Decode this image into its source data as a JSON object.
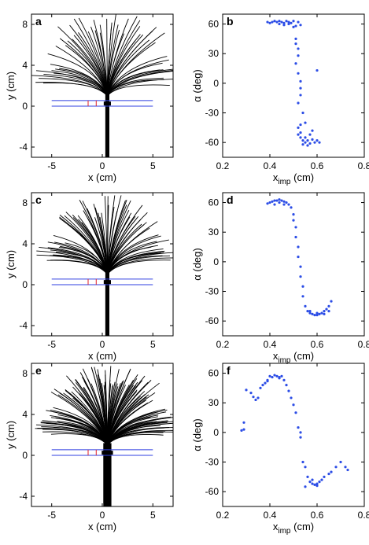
{
  "chart_data": [
    {
      "panel": "a",
      "type": "line",
      "xlabel": "x (cm)",
      "ylabel": "y (cm)",
      "xlim": [
        -7,
        7
      ],
      "ylim": [
        -5,
        9
      ],
      "xticks": [
        "-5",
        "0",
        "5"
      ],
      "yticks": [
        "-4",
        "0",
        "4",
        "8"
      ],
      "grid": false,
      "fan": {
        "origin": [
          0.5,
          1.0
        ],
        "max_len": 8.0,
        "count": 60,
        "max_angle_deg": 75
      },
      "stem": {
        "x": [
          0.3,
          0.7
        ],
        "y": [
          -5,
          1.2
        ]
      },
      "reference_lines": [
        {
          "y": 0.55,
          "x_range": [
            -5,
            5
          ],
          "color": "#2f3fe0"
        },
        {
          "y": 0.0,
          "x_range": [
            -5,
            5
          ],
          "color": "#2f3fe0"
        }
      ],
      "markers": [
        {
          "x": -1.4,
          "y_range": [
            0.0,
            0.55
          ],
          "color": "#e0202a"
        },
        {
          "x": -0.6,
          "y_range": [
            0.0,
            0.55
          ],
          "color": "#e0202a"
        }
      ]
    },
    {
      "panel": "b",
      "type": "scatter",
      "xlabel": "x",
      "xlabel_sub": "imp",
      "xlabel_unit": " (cm)",
      "ylabel": "α (deg)",
      "xlim": [
        0.2,
        0.8
      ],
      "ylim": [
        -75,
        70
      ],
      "xticks": [
        "0.2",
        "0.4",
        "0.6",
        "0.8"
      ],
      "yticks": [
        "-60",
        "-30",
        "0",
        "30",
        "60"
      ],
      "grid": false,
      "marker_color": "#2c4de6",
      "points": [
        [
          0.39,
          62
        ],
        [
          0.4,
          61
        ],
        [
          0.41,
          62
        ],
        [
          0.42,
          63
        ],
        [
          0.43,
          62
        ],
        [
          0.44,
          63
        ],
        [
          0.45,
          62
        ],
        [
          0.46,
          61
        ],
        [
          0.47,
          63
        ],
        [
          0.48,
          62
        ],
        [
          0.49,
          61
        ],
        [
          0.5,
          57
        ],
        [
          0.51,
          58
        ],
        [
          0.52,
          62
        ],
        [
          0.53,
          59
        ],
        [
          0.44,
          60
        ],
        [
          0.46,
          59
        ],
        [
          0.48,
          60
        ],
        [
          0.5,
          63
        ],
        [
          0.51,
          45
        ],
        [
          0.51,
          40
        ],
        [
          0.52,
          35
        ],
        [
          0.52,
          28
        ],
        [
          0.51,
          20
        ],
        [
          0.52,
          10
        ],
        [
          0.53,
          2
        ],
        [
          0.53,
          -5
        ],
        [
          0.53,
          -12
        ],
        [
          0.52,
          -20
        ],
        [
          0.54,
          -30
        ],
        [
          0.53,
          -42
        ],
        [
          0.52,
          -45
        ],
        [
          0.52,
          -52
        ],
        [
          0.53,
          -55
        ],
        [
          0.54,
          -58
        ],
        [
          0.55,
          -60
        ],
        [
          0.56,
          -58
        ],
        [
          0.57,
          -61
        ],
        [
          0.58,
          -57
        ],
        [
          0.59,
          -60
        ],
        [
          0.6,
          -58
        ],
        [
          0.61,
          -60
        ],
        [
          0.55,
          -55
        ],
        [
          0.57,
          -52
        ],
        [
          0.54,
          -62
        ],
        [
          0.56,
          -63
        ],
        [
          0.6,
          13
        ],
        [
          0.55,
          -40
        ],
        [
          0.58,
          -48
        ],
        [
          0.53,
          -50
        ]
      ]
    },
    {
      "panel": "c",
      "type": "line",
      "xlabel": "x (cm)",
      "ylabel": "y (cm)",
      "xlim": [
        -7,
        7
      ],
      "ylim": [
        -5,
        9
      ],
      "xticks": [
        "-5",
        "0",
        "5"
      ],
      "yticks": [
        "-4",
        "0",
        "4",
        "8"
      ],
      "grid": false,
      "fan": {
        "origin": [
          0.5,
          1.0
        ],
        "max_len": 7.5,
        "count": 80,
        "max_angle_deg": 72
      },
      "stem": {
        "x": [
          0.3,
          0.7
        ],
        "y": [
          -5,
          1.2
        ]
      },
      "reference_lines": [
        {
          "y": 0.55,
          "x_range": [
            -5,
            5
          ],
          "color": "#2f3fe0"
        },
        {
          "y": 0.0,
          "x_range": [
            -5,
            5
          ],
          "color": "#2f3fe0"
        }
      ],
      "markers": [
        {
          "x": -1.4,
          "y_range": [
            0.0,
            0.55
          ],
          "color": "#e0202a"
        },
        {
          "x": -0.6,
          "y_range": [
            0.0,
            0.55
          ],
          "color": "#e0202a"
        }
      ]
    },
    {
      "panel": "d",
      "type": "scatter",
      "xlabel": "x",
      "xlabel_sub": "imp",
      "xlabel_unit": " (cm)",
      "ylabel": "α (deg)",
      "xlim": [
        0.2,
        0.8
      ],
      "ylim": [
        -75,
        70
      ],
      "xticks": [
        "0.2",
        "0.4",
        "0.6",
        "0.8"
      ],
      "yticks": [
        "-60",
        "-30",
        "0",
        "30",
        "60"
      ],
      "grid": false,
      "marker_color": "#2c4de6",
      "points": [
        [
          0.39,
          59
        ],
        [
          0.4,
          60
        ],
        [
          0.41,
          61
        ],
        [
          0.42,
          62
        ],
        [
          0.43,
          62
        ],
        [
          0.44,
          63
        ],
        [
          0.45,
          62
        ],
        [
          0.46,
          61
        ],
        [
          0.47,
          60
        ],
        [
          0.48,
          58
        ],
        [
          0.49,
          55
        ],
        [
          0.5,
          48
        ],
        [
          0.5,
          42
        ],
        [
          0.51,
          35
        ],
        [
          0.51,
          25
        ],
        [
          0.52,
          15
        ],
        [
          0.52,
          5
        ],
        [
          0.53,
          -5
        ],
        [
          0.53,
          -15
        ],
        [
          0.54,
          -25
        ],
        [
          0.54,
          -35
        ],
        [
          0.55,
          -45
        ],
        [
          0.56,
          -50
        ],
        [
          0.57,
          -52
        ],
        [
          0.58,
          -53
        ],
        [
          0.59,
          -54
        ],
        [
          0.6,
          -54
        ],
        [
          0.61,
          -53
        ],
        [
          0.62,
          -52
        ],
        [
          0.63,
          -50
        ],
        [
          0.64,
          -48
        ],
        [
          0.65,
          -45
        ],
        [
          0.66,
          -40
        ],
        [
          0.42,
          58
        ],
        [
          0.44,
          60
        ],
        [
          0.46,
          58
        ],
        [
          0.57,
          -50
        ],
        [
          0.6,
          -52
        ],
        [
          0.63,
          -53
        ],
        [
          0.65,
          -50
        ]
      ]
    },
    {
      "panel": "e",
      "type": "line",
      "xlabel": "x (cm)",
      "ylabel": "y (cm)",
      "xlim": [
        -7,
        7
      ],
      "ylim": [
        -5,
        9
      ],
      "xticks": [
        "-5",
        "0",
        "5"
      ],
      "yticks": [
        "-4",
        "0",
        "4",
        "8"
      ],
      "grid": false,
      "fan": {
        "origin": [
          0.5,
          1.0
        ],
        "max_len": 7.6,
        "count": 130,
        "max_angle_deg": 75
      },
      "stem": {
        "x": [
          0.1,
          0.9
        ],
        "y": [
          -5,
          1.2
        ]
      },
      "reference_lines": [
        {
          "y": 0.55,
          "x_range": [
            -5,
            5
          ],
          "color": "#2f3fe0"
        },
        {
          "y": 0.0,
          "x_range": [
            -5,
            5
          ],
          "color": "#2f3fe0"
        }
      ],
      "markers": [
        {
          "x": -1.4,
          "y_range": [
            0.0,
            0.55
          ],
          "color": "#e0202a"
        },
        {
          "x": -0.6,
          "y_range": [
            0.0,
            0.55
          ],
          "color": "#e0202a"
        }
      ]
    },
    {
      "panel": "f",
      "type": "scatter",
      "xlabel": "x",
      "xlabel_sub": "imp",
      "xlabel_unit": " (cm)",
      "ylabel": "α (deg)",
      "xlim": [
        0.2,
        0.8
      ],
      "ylim": [
        -75,
        70
      ],
      "xticks": [
        "0.2",
        "0.4",
        "0.6",
        "0.8"
      ],
      "yticks": [
        "-60",
        "-30",
        "0",
        "30",
        "60"
      ],
      "grid": false,
      "marker_color": "#2c4de6",
      "points": [
        [
          0.28,
          2
        ],
        [
          0.29,
          3
        ],
        [
          0.29,
          10
        ],
        [
          0.3,
          43
        ],
        [
          0.32,
          40
        ],
        [
          0.33,
          36
        ],
        [
          0.34,
          33
        ],
        [
          0.35,
          35
        ],
        [
          0.36,
          45
        ],
        [
          0.37,
          48
        ],
        [
          0.38,
          50
        ],
        [
          0.39,
          53
        ],
        [
          0.4,
          57
        ],
        [
          0.41,
          56
        ],
        [
          0.42,
          58
        ],
        [
          0.43,
          57
        ],
        [
          0.44,
          55
        ],
        [
          0.45,
          57
        ],
        [
          0.46,
          53
        ],
        [
          0.47,
          48
        ],
        [
          0.48,
          42
        ],
        [
          0.49,
          35
        ],
        [
          0.5,
          28
        ],
        [
          0.51,
          20
        ],
        [
          0.52,
          5
        ],
        [
          0.53,
          -5
        ],
        [
          0.54,
          -30
        ],
        [
          0.55,
          -35
        ],
        [
          0.56,
          -45
        ],
        [
          0.57,
          -50
        ],
        [
          0.58,
          -52
        ],
        [
          0.59,
          -53
        ],
        [
          0.6,
          -52
        ],
        [
          0.61,
          -50
        ],
        [
          0.62,
          -48
        ],
        [
          0.63,
          -45
        ],
        [
          0.66,
          -40
        ],
        [
          0.68,
          -35
        ],
        [
          0.7,
          -30
        ],
        [
          0.72,
          -35
        ],
        [
          0.73,
          -38
        ],
        [
          0.55,
          -55
        ],
        [
          0.58,
          -48
        ],
        [
          0.65,
          -42
        ],
        [
          0.39,
          52
        ],
        [
          0.44,
          56
        ],
        [
          0.53,
          0
        ],
        [
          0.6,
          -54
        ]
      ]
    }
  ]
}
